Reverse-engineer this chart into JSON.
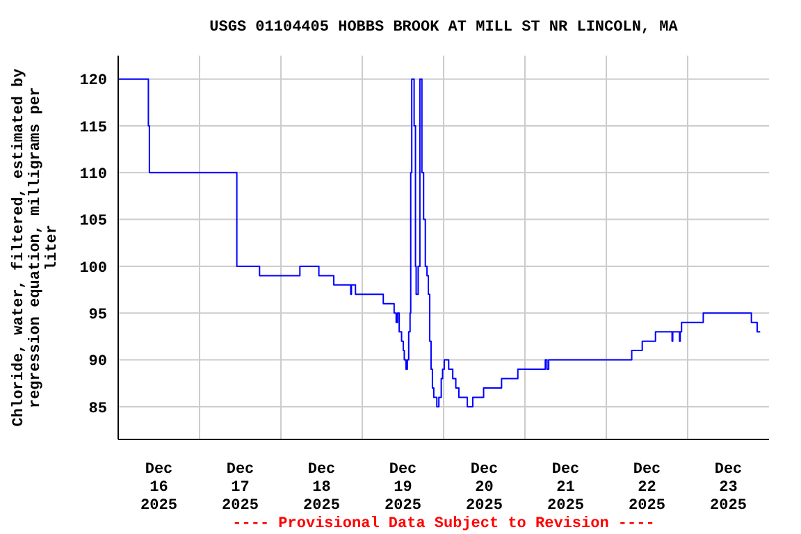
{
  "chart_data": {
    "type": "step",
    "title": "USGS 01104405 HOBBS BROOK AT MILL ST NR LINCOLN, MA",
    "ylabel": "Chloride, water, filtered, estimated by regression equation, milligrams per liter",
    "annotations": [
      "---- Provisional Data Subject to Revision ----"
    ],
    "x": [
      "2025-12-16T00:00",
      "2025-12-16T08:54",
      "2025-12-16T09:12",
      "2025-12-17T11:00",
      "2025-12-17T17:42",
      "2025-12-18T05:36",
      "2025-12-18T11:12",
      "2025-12-18T15:36",
      "2025-12-18T20:36",
      "2025-12-18T20:48",
      "2025-12-18T22:00",
      "2025-12-19T06:12",
      "2025-12-19T09:24",
      "2025-12-19T10:00",
      "2025-12-19T10:24",
      "2025-12-19T10:54",
      "2025-12-19T11:36",
      "2025-12-19T12:06",
      "2025-12-19T12:24",
      "2025-12-19T12:54",
      "2025-12-19T13:18",
      "2025-12-19T13:42",
      "2025-12-19T14:06",
      "2025-12-19T14:18",
      "2025-12-19T14:36",
      "2025-12-19T15:18",
      "2025-12-19T15:42",
      "2025-12-19T15:54",
      "2025-12-19T16:30",
      "2025-12-19T17:00",
      "2025-12-19T17:36",
      "2025-12-19T18:06",
      "2025-12-19T18:36",
      "2025-12-19T19:06",
      "2025-12-19T19:30",
      "2025-12-19T19:54",
      "2025-12-19T20:18",
      "2025-12-19T20:42",
      "2025-12-19T21:06",
      "2025-12-19T22:00",
      "2025-12-19T22:36",
      "2025-12-19T23:18",
      "2025-12-19T23:42",
      "2025-12-20T00:12",
      "2025-12-20T01:30",
      "2025-12-20T02:42",
      "2025-12-20T03:36",
      "2025-12-20T04:30",
      "2025-12-20T07:00",
      "2025-12-20T08:36",
      "2025-12-20T11:48",
      "2025-12-20T17:06",
      "2025-12-20T21:54",
      "2025-12-21T06:00",
      "2025-12-21T06:30",
      "2025-12-21T07:00",
      "2025-12-22T07:30",
      "2025-12-22T10:36",
      "2025-12-22T14:30",
      "2025-12-22T19:24",
      "2025-12-22T19:36",
      "2025-12-22T21:36",
      "2025-12-22T21:48",
      "2025-12-22T22:12",
      "2025-12-23T04:36",
      "2025-12-23T18:48",
      "2025-12-23T20:30",
      "2025-12-23T21:24"
    ],
    "series": [
      {
        "color": "#0000ff",
        "values": [
          120,
          115,
          110,
          100,
          99,
          100,
          99,
          98,
          97,
          98,
          97,
          96,
          95,
          94,
          95,
          93,
          92,
          91,
          90,
          89,
          90,
          93,
          95,
          110,
          120,
          115,
          100,
          97,
          100,
          120,
          110,
          105,
          100,
          99,
          97,
          92,
          89,
          87,
          86,
          85,
          86,
          88,
          89,
          90,
          89,
          88,
          87,
          86,
          85,
          86,
          87,
          88,
          89,
          90,
          89,
          90,
          91,
          92,
          93,
          92,
          93,
          92,
          93,
          94,
          95,
          94,
          93,
          93
        ]
      }
    ],
    "xlim": [
      "2025-12-16T00:00",
      "2025-12-24T00:00"
    ],
    "xticks": [
      {
        "value": "2025-12-16T12:00",
        "label": "Dec\n16\n2025"
      },
      {
        "value": "2025-12-17T00:00",
        "label": null
      },
      {
        "value": "2025-12-17T12:00",
        "label": "Dec\n17\n2025"
      },
      {
        "value": "2025-12-18T00:00",
        "label": null
      },
      {
        "value": "2025-12-18T12:00",
        "label": "Dec\n18\n2025"
      },
      {
        "value": "2025-12-19T00:00",
        "label": null
      },
      {
        "value": "2025-12-19T12:00",
        "label": "Dec\n19\n2025"
      },
      {
        "value": "2025-12-20T00:00",
        "label": null
      },
      {
        "value": "2025-12-20T12:00",
        "label": "Dec\n20\n2025"
      },
      {
        "value": "2025-12-21T00:00",
        "label": null
      },
      {
        "value": "2025-12-21T12:00",
        "label": "Dec\n21\n2025"
      },
      {
        "value": "2025-12-22T00:00",
        "label": null
      },
      {
        "value": "2025-12-22T12:00",
        "label": "Dec\n22\n2025"
      },
      {
        "value": "2025-12-23T00:00",
        "label": null
      },
      {
        "value": "2025-12-23T12:00",
        "label": "Dec\n23\n2025"
      }
    ],
    "ylim": [
      81.5,
      122.5
    ],
    "yticks": [
      85,
      90,
      95,
      100,
      105,
      110,
      115,
      120
    ],
    "grid": true,
    "marker": "none",
    "line_style": "solid"
  }
}
